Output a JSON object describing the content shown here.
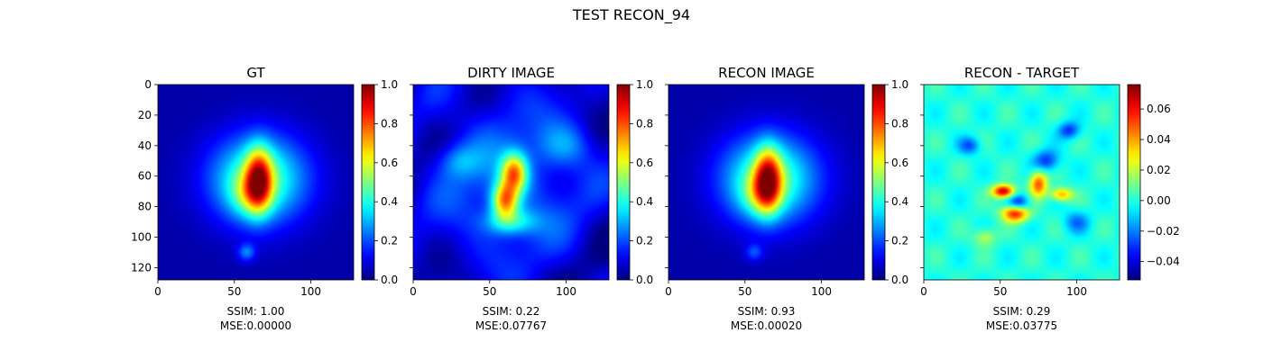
{
  "figure": {
    "suptitle": "TEST RECON_94"
  },
  "chart_data": [
    {
      "type": "heatmap",
      "title": "GT",
      "caption": [
        "SSIM: 1.00",
        "MSE:0.00000"
      ],
      "xlim": [
        0,
        128
      ],
      "ylim": [
        128,
        0
      ],
      "x_ticks": [
        0,
        50,
        100
      ],
      "y_ticks": [
        0,
        20,
        40,
        60,
        80,
        100,
        120
      ],
      "colormap": "jet",
      "colorbar": {
        "vmin": 0.0,
        "vmax": 1.0,
        "ticks": [
          "0.0",
          "0.2",
          "0.4",
          "0.6",
          "0.8",
          "1.0"
        ]
      },
      "blobs": [
        {
          "x": 66,
          "y": 62,
          "sx": 22,
          "sy": 20,
          "a": 0.45
        },
        {
          "x": 66,
          "y": 62,
          "sx": 6,
          "sy": 14,
          "a": 0.55
        },
        {
          "x": 60,
          "y": 72,
          "sx": 9,
          "sy": 10,
          "a": 0.2
        },
        {
          "x": 58,
          "y": 110,
          "sx": 4,
          "sy": 4,
          "a": 0.2
        }
      ]
    },
    {
      "type": "heatmap",
      "title": "DIRTY IMAGE",
      "caption": [
        "SSIM: 0.22",
        "MSE:0.07767"
      ],
      "xlim": [
        0,
        128
      ],
      "ylim": [
        128,
        0
      ],
      "x_ticks": [
        0,
        50,
        100
      ],
      "y_ticks": [
        0,
        20,
        40,
        60,
        80,
        100,
        120
      ],
      "colormap": "jet",
      "colorbar": {
        "vmin": 0.0,
        "vmax": 1.0,
        "ticks": [
          "0.0",
          "0.2",
          "0.4",
          "0.6",
          "0.8",
          "1.0"
        ]
      },
      "blobs": [
        {
          "x": 64,
          "y": 64,
          "sx": 40,
          "sy": 45,
          "a": 0.18
        },
        {
          "x": 66,
          "y": 58,
          "sx": 6,
          "sy": 9,
          "a": 0.55
        },
        {
          "x": 60,
          "y": 76,
          "sx": 6,
          "sy": 8,
          "a": 0.55
        },
        {
          "x": 64,
          "y": 90,
          "sx": 12,
          "sy": 6,
          "a": 0.25
        },
        {
          "x": 30,
          "y": 50,
          "sx": 10,
          "sy": 8,
          "a": 0.15
        },
        {
          "x": 100,
          "y": 40,
          "sx": 12,
          "sy": 10,
          "a": 0.15
        }
      ]
    },
    {
      "type": "heatmap",
      "title": "RECON IMAGE",
      "caption": [
        "SSIM: 0.93",
        "MSE:0.00020"
      ],
      "xlim": [
        0,
        128
      ],
      "ylim": [
        128,
        0
      ],
      "x_ticks": [
        0,
        50,
        100
      ],
      "y_ticks": [
        0,
        20,
        40,
        60,
        80,
        100,
        120
      ],
      "colormap": "jet",
      "colorbar": {
        "vmin": 0.0,
        "vmax": 1.0,
        "ticks": [
          "0.0",
          "0.2",
          "0.4",
          "0.6",
          "0.8",
          "1.0"
        ]
      },
      "blobs": [
        {
          "x": 66,
          "y": 62,
          "sx": 22,
          "sy": 20,
          "a": 0.45
        },
        {
          "x": 65,
          "y": 62,
          "sx": 6,
          "sy": 14,
          "a": 0.55
        },
        {
          "x": 60,
          "y": 72,
          "sx": 9,
          "sy": 10,
          "a": 0.2
        },
        {
          "x": 56,
          "y": 110,
          "sx": 4,
          "sy": 4,
          "a": 0.15
        }
      ]
    },
    {
      "type": "heatmap",
      "title": "RECON - TARGET",
      "caption": [
        "SSIM: 0.29",
        "MSE:0.03775"
      ],
      "xlim": [
        0,
        128
      ],
      "ylim": [
        128,
        0
      ],
      "x_ticks": [
        0,
        50,
        100
      ],
      "y_ticks": [
        0,
        20,
        40,
        60,
        80,
        100,
        120
      ],
      "colormap": "jet",
      "colorbar": {
        "vmin": -0.052,
        "vmax": 0.076,
        "ticks": [
          "−0.04",
          "−0.02",
          "0.00",
          "0.02",
          "0.04",
          "0.06"
        ]
      },
      "blobs": [
        {
          "x": 52,
          "y": 70,
          "sx": 5,
          "sy": 3,
          "a": 0.07
        },
        {
          "x": 60,
          "y": 84,
          "sx": 6,
          "sy": 4,
          "a": 0.065
        },
        {
          "x": 75,
          "y": 65,
          "sx": 4,
          "sy": 6,
          "a": 0.05
        },
        {
          "x": 90,
          "y": 72,
          "sx": 5,
          "sy": 3,
          "a": 0.04
        },
        {
          "x": 62,
          "y": 78,
          "sx": 5,
          "sy": 4,
          "a": -0.04
        },
        {
          "x": 80,
          "y": 50,
          "sx": 6,
          "sy": 5,
          "a": -0.03
        },
        {
          "x": 95,
          "y": 30,
          "sx": 5,
          "sy": 4,
          "a": -0.03
        },
        {
          "x": 30,
          "y": 40,
          "sx": 5,
          "sy": 4,
          "a": -0.025
        },
        {
          "x": 100,
          "y": 90,
          "sx": 6,
          "sy": 5,
          "a": -0.02
        },
        {
          "x": 40,
          "y": 100,
          "sx": 5,
          "sy": 4,
          "a": 0.02
        }
      ]
    }
  ]
}
